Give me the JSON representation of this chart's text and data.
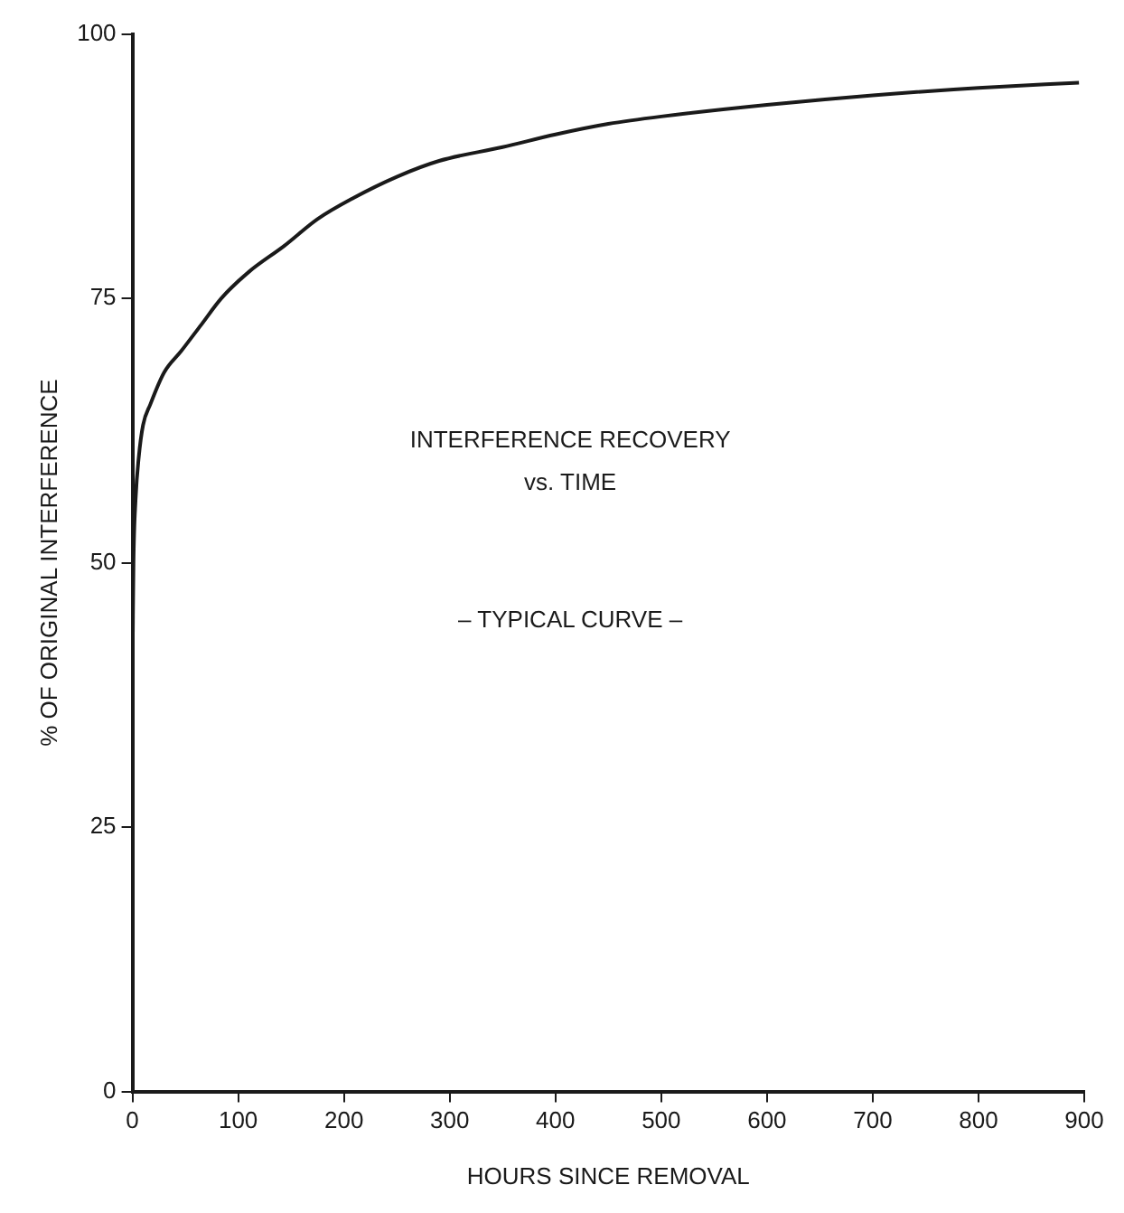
{
  "chart_data": {
    "type": "line",
    "xlabel": "HOURS SINCE REMOVAL",
    "ylabel": "% OF ORIGINAL INTERFERENCE",
    "annotations": [
      "INTERFERENCE RECOVERY",
      "vs. TIME",
      "– TYPICAL CURVE –"
    ],
    "series": [
      {
        "color": "#1a1a1a",
        "x": [
          0,
          0.5,
          1,
          3,
          6,
          10,
          17,
          30,
          46,
          65,
          84,
          110,
          144,
          175,
          209,
          250,
          290,
          350,
          400,
          450,
          500,
          600,
          700,
          800,
          895
        ],
        "values": [
          38,
          45,
          50,
          56,
          60,
          63,
          65,
          68,
          70,
          72.5,
          75,
          77.5,
          80,
          82.5,
          84.5,
          86.5,
          88,
          89.3,
          90.5,
          91.5,
          92.2,
          93.3,
          94.2,
          94.9,
          95.4
        ]
      }
    ],
    "xlim": [
      0,
      900
    ],
    "xticks": [
      0,
      100,
      200,
      300,
      400,
      500,
      600,
      700,
      800,
      900
    ],
    "ylim": [
      0,
      100
    ],
    "yticks": [
      0,
      25,
      50,
      75,
      100
    ],
    "grid": false,
    "legend": false,
    "marker": "none",
    "line_style": "solid"
  }
}
